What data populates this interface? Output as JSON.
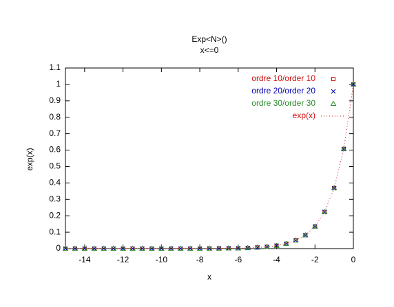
{
  "chart_data": {
    "type": "scatter",
    "title": "Exp<N>()",
    "subtitle": "x<=0",
    "x_label": "x",
    "y_label": "exp(x)",
    "x": [
      -15,
      -14.5,
      -14,
      -13.5,
      -13,
      -12.5,
      -12,
      -11.5,
      -11,
      -10.5,
      -10,
      -9.5,
      -9,
      -8.5,
      -8,
      -7.5,
      -7,
      -6.5,
      -6,
      -5.5,
      -5,
      -4.5,
      -4,
      -3.5,
      -3,
      -2.5,
      -2,
      -1.5,
      -1,
      -0.5,
      0
    ],
    "series": [
      {
        "name": "ordre 10/order 10",
        "color": "#d01010",
        "marker": "square",
        "values": [
          0,
          0,
          0,
          0,
          0,
          0,
          0,
          0,
          0,
          0,
          0,
          0,
          0,
          0,
          0,
          0.001,
          0.001,
          0.002,
          0.002,
          0.004,
          0.007,
          0.011,
          0.018,
          0.03,
          0.05,
          0.082,
          0.135,
          0.223,
          0.368,
          0.607,
          1
        ]
      },
      {
        "name": "ordre 20/order 20",
        "color": "#0000b0",
        "marker": "cross",
        "values": [
          0,
          0,
          0,
          0,
          0,
          0,
          0,
          0,
          0,
          0,
          0,
          0,
          0,
          0,
          0,
          0.001,
          0.001,
          0.002,
          0.002,
          0.004,
          0.007,
          0.011,
          0.018,
          0.03,
          0.05,
          0.082,
          0.135,
          0.223,
          0.368,
          0.607,
          1
        ]
      },
      {
        "name": "ordre 30/order 30",
        "color": "#2e8b2e",
        "marker": "triangle",
        "values": [
          0,
          0,
          0,
          0,
          0,
          0,
          0,
          0,
          0,
          0,
          0,
          0,
          0,
          0,
          0,
          0.001,
          0.001,
          0.002,
          0.002,
          0.004,
          0.007,
          0.011,
          0.018,
          0.03,
          0.05,
          0.082,
          0.135,
          0.223,
          0.368,
          0.607,
          1
        ]
      },
      {
        "name": "exp(x)",
        "color": "#d01010",
        "marker": "dotted-line",
        "values": [
          0,
          0,
          0,
          0,
          0,
          0,
          0,
          0,
          0,
          0,
          0,
          0,
          0,
          0,
          0,
          0.001,
          0.001,
          0.002,
          0.002,
          0.004,
          0.007,
          0.011,
          0.018,
          0.03,
          0.05,
          0.082,
          0.135,
          0.223,
          0.368,
          0.607,
          1
        ]
      }
    ],
    "xlim": [
      -15,
      0
    ],
    "xticks": [
      -14,
      -12,
      -10,
      -8,
      -6,
      -4,
      -2,
      0
    ],
    "ylim": [
      0,
      1.1
    ],
    "yticks": [
      0,
      0.1,
      0.2,
      0.3,
      0.4,
      0.5,
      0.6,
      0.7,
      0.8,
      0.9,
      1,
      1.1
    ],
    "grid": false,
    "legend": "top-right"
  }
}
